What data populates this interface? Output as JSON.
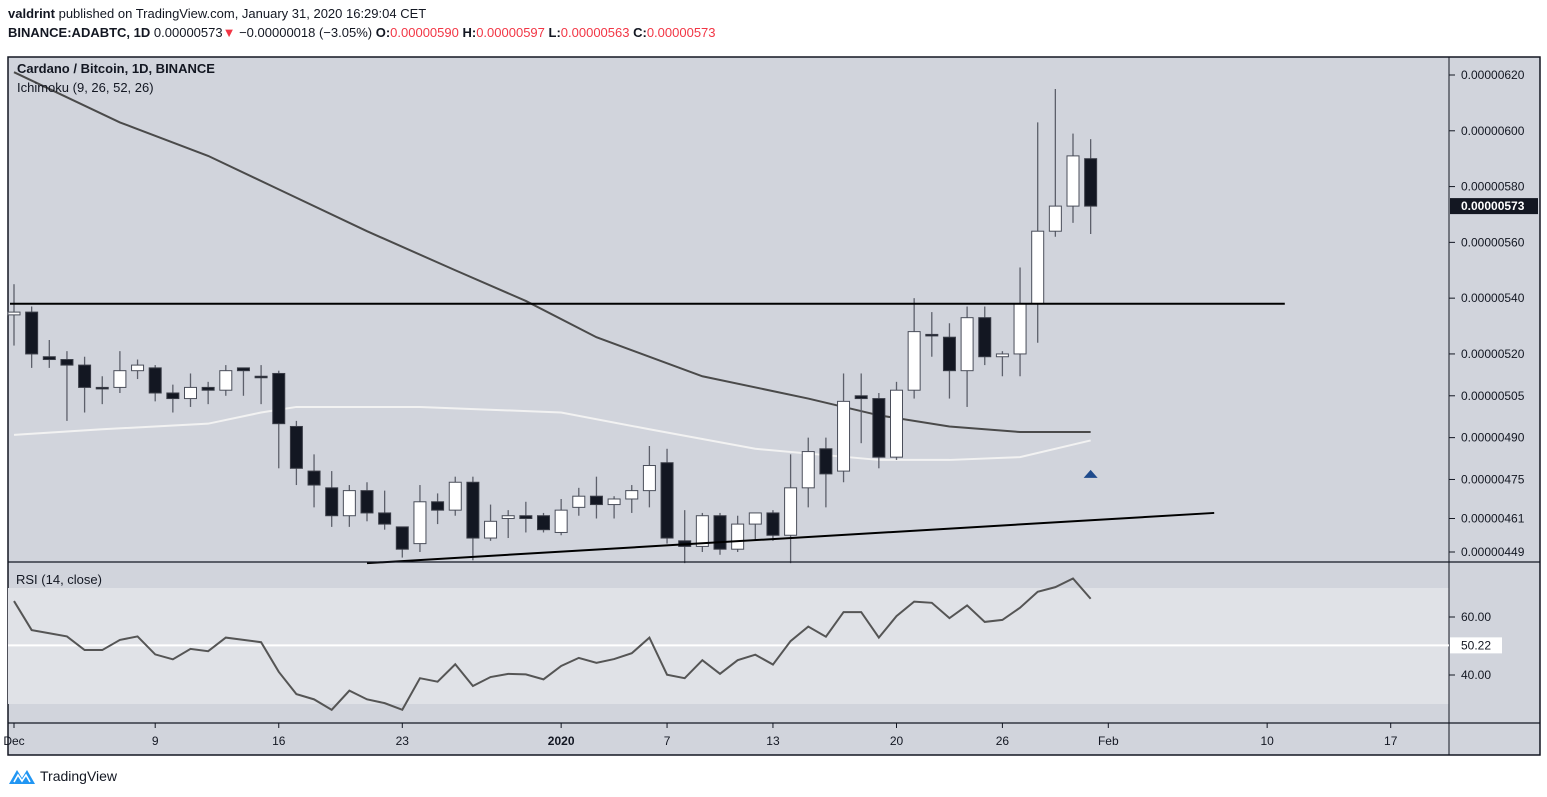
{
  "header": {
    "author": "valdrint",
    "published_text": "published on TradingView.com, January 31, 2020 16:29:04 CET",
    "symbol": "BINANCE:ADABTC, 1D",
    "last": "0.00000573",
    "change_icon": "triangle-down-icon",
    "change": "−0.00000018 (−3.05%)",
    "o_label": "O:",
    "o": "0.00000590",
    "h_label": "H:",
    "h": "0.00000597",
    "l_label": "L:",
    "l": "0.00000563",
    "c_label": "C:",
    "c": "0.00000573"
  },
  "colors": {
    "background": "#d1d4dc",
    "rsi_band": "#e0e2e7",
    "candle_down": "#131722",
    "candle_up": "#ffffff",
    "wick": "#5d606b",
    "ichimoku_dark": "#4a4a4a",
    "ichimoku_light": "#f2f2f2",
    "marker": "#1e4a8c",
    "text_red": "#f23645"
  },
  "footer": {
    "logo_text": "TradingView"
  },
  "chart_data": [
    {
      "type": "candlestick",
      "title": "Cardano / Bitcoin, 1D, BINANCE",
      "indicator_label": "Ichimoku (9, 26, 52, 26)",
      "y_scale": "linear",
      "ylim": [
        4.43e-06,
        6.35e-06
      ],
      "y_ticks": [
        "0.00000620",
        "0.00000600",
        "0.00000580",
        "0.00000560",
        "0.00000540",
        "0.00000520",
        "0.00000505",
        "0.00000490",
        "0.00000475",
        "0.00000461",
        "0.00000449"
      ],
      "current_price_label": "0.00000573",
      "x_ticks": [
        {
          "date": "2019-12-01",
          "label": "Dec",
          "bold": false
        },
        {
          "date": "2019-12-09",
          "label": "9",
          "bold": false
        },
        {
          "date": "2019-12-16",
          "label": "16",
          "bold": false
        },
        {
          "date": "2019-12-23",
          "label": "23",
          "bold": false
        },
        {
          "date": "2020-01-01",
          "label": "2020",
          "bold": true
        },
        {
          "date": "2020-01-07",
          "label": "7",
          "bold": false
        },
        {
          "date": "2020-01-13",
          "label": "13",
          "bold": false
        },
        {
          "date": "2020-01-20",
          "label": "20",
          "bold": false
        },
        {
          "date": "2020-01-26",
          "label": "26",
          "bold": false
        },
        {
          "date": "2020-02-01",
          "label": "Feb",
          "bold": false
        },
        {
          "date": "2020-02-10",
          "label": "10",
          "bold": false
        },
        {
          "date": "2020-02-17",
          "label": "17",
          "bold": false
        }
      ],
      "candles_columns": [
        "date",
        "open",
        "high",
        "low",
        "close"
      ],
      "candles": [
        [
          "2019-12-01",
          5.34e-06,
          5.45e-06,
          5.23e-06,
          5.35e-06
        ],
        [
          "2019-12-02",
          5.35e-06,
          5.37e-06,
          5.15e-06,
          5.2e-06
        ],
        [
          "2019-12-03",
          5.19e-06,
          5.25e-06,
          5.15e-06,
          5.18e-06
        ],
        [
          "2019-12-04",
          5.18e-06,
          5.21e-06,
          4.96e-06,
          5.16e-06
        ],
        [
          "2019-12-05",
          5.16e-06,
          5.19e-06,
          4.99e-06,
          5.08e-06
        ],
        [
          "2019-12-06",
          5.08e-06,
          5.12e-06,
          5.02e-06,
          5.08e-06
        ],
        [
          "2019-12-07",
          5.08e-06,
          5.21e-06,
          5.06e-06,
          5.14e-06
        ],
        [
          "2019-12-08",
          5.14e-06,
          5.18e-06,
          5.11e-06,
          5.16e-06
        ],
        [
          "2019-12-09",
          5.15e-06,
          5.16e-06,
          5.03e-06,
          5.06e-06
        ],
        [
          "2019-12-10",
          5.06e-06,
          5.09e-06,
          4.99e-06,
          5.04e-06
        ],
        [
          "2019-12-11",
          5.04e-06,
          5.13e-06,
          5.01e-06,
          5.08e-06
        ],
        [
          "2019-12-12",
          5.08e-06,
          5.1e-06,
          5.02e-06,
          5.07e-06
        ],
        [
          "2019-12-13",
          5.07e-06,
          5.16e-06,
          5.05e-06,
          5.14e-06
        ],
        [
          "2019-12-14",
          5.15e-06,
          5.15e-06,
          5.05e-06,
          5.14e-06
        ],
        [
          "2019-12-15",
          5.12e-06,
          5.16e-06,
          5.02e-06,
          5.12e-06
        ],
        [
          "2019-12-16",
          5.13e-06,
          5.14e-06,
          4.79e-06,
          4.95e-06
        ],
        [
          "2019-12-17",
          4.94e-06,
          4.96e-06,
          4.73e-06,
          4.79e-06
        ],
        [
          "2019-12-18",
          4.78e-06,
          4.84e-06,
          4.65e-06,
          4.73e-06
        ],
        [
          "2019-12-19",
          4.72e-06,
          4.78e-06,
          4.58e-06,
          4.62e-06
        ],
        [
          "2019-12-20",
          4.62e-06,
          4.73e-06,
          4.58e-06,
          4.71e-06
        ],
        [
          "2019-12-21",
          4.71e-06,
          4.74e-06,
          4.6e-06,
          4.63e-06
        ],
        [
          "2019-12-22",
          4.63e-06,
          4.71e-06,
          4.57e-06,
          4.59e-06
        ],
        [
          "2019-12-23",
          4.58e-06,
          4.58e-06,
          4.47e-06,
          4.5e-06
        ],
        [
          "2019-12-24",
          4.52e-06,
          4.73e-06,
          4.49e-06,
          4.67e-06
        ],
        [
          "2019-12-25",
          4.67e-06,
          4.7e-06,
          4.59e-06,
          4.64e-06
        ],
        [
          "2019-12-26",
          4.64e-06,
          4.76e-06,
          4.62e-06,
          4.74e-06
        ],
        [
          "2019-12-27",
          4.74e-06,
          4.76e-06,
          4.46e-06,
          4.54e-06
        ],
        [
          "2019-12-28",
          4.54e-06,
          4.66e-06,
          4.53e-06,
          4.6e-06
        ],
        [
          "2019-12-29",
          4.61e-06,
          4.64e-06,
          4.54e-06,
          4.62e-06
        ],
        [
          "2019-12-30",
          4.62e-06,
          4.67e-06,
          4.56e-06,
          4.61e-06
        ],
        [
          "2019-12-31",
          4.62e-06,
          4.63e-06,
          4.56e-06,
          4.57e-06
        ],
        [
          "2020-01-01",
          4.56e-06,
          4.68e-06,
          4.55e-06,
          4.64e-06
        ],
        [
          "2020-01-02",
          4.65e-06,
          4.72e-06,
          4.62e-06,
          4.69e-06
        ],
        [
          "2020-01-03",
          4.69e-06,
          4.76e-06,
          4.61e-06,
          4.66e-06
        ],
        [
          "2020-01-04",
          4.66e-06,
          4.69e-06,
          4.61e-06,
          4.68e-06
        ],
        [
          "2020-01-05",
          4.68e-06,
          4.73e-06,
          4.63e-06,
          4.71e-06
        ],
        [
          "2020-01-06",
          4.71e-06,
          4.87e-06,
          4.65e-06,
          4.8e-06
        ],
        [
          "2020-01-07",
          4.81e-06,
          4.86e-06,
          4.52e-06,
          4.54e-06
        ],
        [
          "2020-01-08",
          4.53e-06,
          4.64e-06,
          4.45e-06,
          4.51e-06
        ],
        [
          "2020-01-09",
          4.51e-06,
          4.63e-06,
          4.49e-06,
          4.62e-06
        ],
        [
          "2020-01-10",
          4.62e-06,
          4.63e-06,
          4.48e-06,
          4.5e-06
        ],
        [
          "2020-01-11",
          4.5e-06,
          4.62e-06,
          4.49e-06,
          4.59e-06
        ],
        [
          "2020-01-12",
          4.59e-06,
          4.63e-06,
          4.53e-06,
          4.63e-06
        ],
        [
          "2020-01-13",
          4.63e-06,
          4.64e-06,
          4.53e-06,
          4.55e-06
        ],
        [
          "2020-01-14",
          4.55e-06,
          4.84e-06,
          4.45e-06,
          4.72e-06
        ],
        [
          "2020-01-15",
          4.72e-06,
          4.9e-06,
          4.65e-06,
          4.85e-06
        ],
        [
          "2020-01-16",
          4.86e-06,
          4.9e-06,
          4.65e-06,
          4.77e-06
        ],
        [
          "2020-01-17",
          4.78e-06,
          5.13e-06,
          4.74e-06,
          5.03e-06
        ],
        [
          "2020-01-18",
          5.05e-06,
          5.13e-06,
          4.88e-06,
          5.04e-06
        ],
        [
          "2020-01-19",
          5.04e-06,
          5.06e-06,
          4.79e-06,
          4.83e-06
        ],
        [
          "2020-01-20",
          4.83e-06,
          5.1e-06,
          4.82e-06,
          5.07e-06
        ],
        [
          "2020-01-21",
          5.07e-06,
          5.4e-06,
          5.04e-06,
          5.28e-06
        ],
        [
          "2020-01-22",
          5.27e-06,
          5.35e-06,
          5.19e-06,
          5.27e-06
        ],
        [
          "2020-01-23",
          5.26e-06,
          5.31e-06,
          5.04e-06,
          5.14e-06
        ],
        [
          "2020-01-24",
          5.14e-06,
          5.37e-06,
          5.01e-06,
          5.33e-06
        ],
        [
          "2020-01-25",
          5.33e-06,
          5.37e-06,
          5.16e-06,
          5.19e-06
        ],
        [
          "2020-01-26",
          5.19e-06,
          5.21e-06,
          5.12e-06,
          5.2e-06
        ],
        [
          "2020-01-27",
          5.2e-06,
          5.51e-06,
          5.12e-06,
          5.38e-06
        ],
        [
          "2020-01-28",
          5.38e-06,
          6.03e-06,
          5.24e-06,
          5.64e-06
        ],
        [
          "2020-01-29",
          5.64e-06,
          6.15e-06,
          5.62e-06,
          5.73e-06
        ],
        [
          "2020-01-30",
          5.73e-06,
          5.99e-06,
          5.67e-06,
          5.91e-06
        ],
        [
          "2020-01-31",
          5.9e-06,
          5.97e-06,
          5.63e-06,
          5.73e-06
        ]
      ],
      "ichimoku_dark_line": [
        [
          "2019-12-01",
          6.21e-06
        ],
        [
          "2019-12-07",
          6.03e-06
        ],
        [
          "2019-12-12",
          5.91e-06
        ],
        [
          "2019-12-16",
          5.79e-06
        ],
        [
          "2019-12-21",
          5.64e-06
        ],
        [
          "2019-12-26",
          5.5e-06
        ],
        [
          "2019-12-30",
          5.39e-06
        ],
        [
          "2020-01-03",
          5.26e-06
        ],
        [
          "2020-01-09",
          5.12e-06
        ],
        [
          "2020-01-15",
          5.04e-06
        ],
        [
          "2020-01-19",
          4.98e-06
        ],
        [
          "2020-01-23",
          4.94e-06
        ],
        [
          "2020-01-27",
          4.92e-06
        ],
        [
          "2020-01-31",
          4.92e-06
        ]
      ],
      "ichimoku_light_line": [
        [
          "2019-12-01",
          4.91e-06
        ],
        [
          "2019-12-06",
          4.93e-06
        ],
        [
          "2019-12-12",
          4.95e-06
        ],
        [
          "2019-12-15",
          4.99e-06
        ],
        [
          "2019-12-17",
          5.01e-06
        ],
        [
          "2019-12-24",
          5.01e-06
        ],
        [
          "2020-01-01",
          4.99e-06
        ],
        [
          "2020-01-06",
          4.93e-06
        ],
        [
          "2020-01-12",
          4.86e-06
        ],
        [
          "2020-01-19",
          4.82e-06
        ],
        [
          "2020-01-23",
          4.82e-06
        ],
        [
          "2020-01-27",
          4.83e-06
        ],
        [
          "2020-01-31",
          4.89e-06
        ]
      ],
      "horizontal_level": {
        "price": 5.38e-06,
        "from": "2019-12-01",
        "to": "2020-02-11"
      },
      "trend_line": [
        [
          "2019-12-21",
          4.45e-06
        ],
        [
          "2020-02-07",
          4.63e-06
        ]
      ],
      "marker": {
        "date": "2020-01-31",
        "price": 4.77e-06,
        "shape": "triangle-up"
      }
    },
    {
      "type": "line",
      "title": "RSI (14, close)",
      "ylim": [
        20,
        80
      ],
      "y_ticks": [
        "60.00",
        "40.00"
      ],
      "band": [
        30,
        70
      ],
      "reference_value": 50.22,
      "reference_label": "50.22",
      "values": [
        65.5,
        55.5,
        54.4,
        53.3,
        48.6,
        48.6,
        52.1,
        53.3,
        47.1,
        45.4,
        49.0,
        48.2,
        52.9,
        52.1,
        51.3,
        41.1,
        33.4,
        31.6,
        28.0,
        34.6,
        31.6,
        30.3,
        28.0,
        38.9,
        37.7,
        43.7,
        36.2,
        39.3,
        40.4,
        40.2,
        38.5,
        43.1,
        45.9,
        44.2,
        45.5,
        47.5,
        52.9,
        40.1,
        38.9,
        45.1,
        40.4,
        45.1,
        47.0,
        43.6,
        51.7,
        56.7,
        53.2,
        61.7,
        61.7,
        52.9,
        60.3,
        65.3,
        64.9,
        59.6,
        64.0,
        58.3,
        59.0,
        63.2,
        68.7,
        70.3,
        73.3,
        66.3
      ]
    }
  ]
}
